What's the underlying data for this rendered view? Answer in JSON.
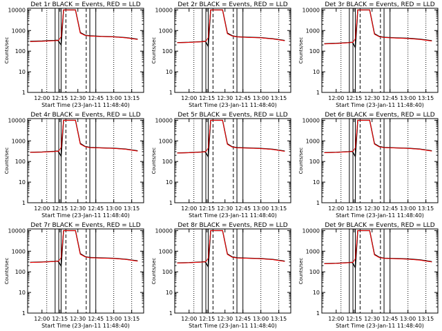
{
  "figure": {
    "xlabel": "Start Time (23-Jan-11 11:48:40)",
    "ylabel": "Counts/sec",
    "x_ticks": [
      "12:00",
      "12:15",
      "12:30",
      "12:45",
      "13:00",
      "13:15"
    ],
    "y_ticks": [
      "1",
      "10",
      "100",
      "1000",
      "10000"
    ],
    "colors": {
      "events": "#000000",
      "lld": "#ff0000",
      "axes": "#000000",
      "background": "#ffffff"
    }
  },
  "chart_data": [
    {
      "type": "line",
      "title": "Det 1r BLACK = Events, RED = LLD",
      "xlabel": "Start Time (23-Jan-11 11:48:40)",
      "ylabel": "Counts/sec",
      "y_scale": "log",
      "ylim": [
        1,
        12000
      ],
      "x": [
        "11:50",
        "12:00",
        "12:10",
        "12:13",
        "12:14",
        "12:16",
        "12:18",
        "12:26",
        "12:28",
        "12:32",
        "12:36",
        "12:40",
        "12:50",
        "13:00",
        "13:10",
        "13:20"
      ],
      "series": [
        {
          "name": "Events",
          "color": "#000000",
          "values": [
            300,
            310,
            330,
            340,
            300,
            200,
            10000,
            10000,
            10000,
            800,
            600,
            550,
            520,
            500,
            450,
            380
          ]
        },
        {
          "name": "LLD",
          "color": "#ff0000",
          "values": [
            290,
            300,
            320,
            330,
            340,
            500,
            10000,
            10000,
            10000,
            750,
            580,
            540,
            510,
            490,
            440,
            370
          ]
        }
      ]
    },
    {
      "type": "line",
      "title": "Det 2r BLACK = Events, RED = LLD",
      "xlabel": "Start Time (23-Jan-11 11:48:40)",
      "ylabel": "Counts/sec",
      "y_scale": "log",
      "ylim": [
        1,
        12000
      ],
      "x": [
        "11:50",
        "12:00",
        "12:10",
        "12:13",
        "12:14",
        "12:16",
        "12:18",
        "12:26",
        "12:28",
        "12:32",
        "12:36",
        "12:40",
        "12:50",
        "13:00",
        "13:10",
        "13:20"
      ],
      "series": [
        {
          "name": "Events",
          "color": "#000000",
          "values": [
            260,
            270,
            290,
            300,
            280,
            170,
            10000,
            10000,
            10000,
            750,
            560,
            500,
            470,
            450,
            400,
            330
          ]
        },
        {
          "name": "LLD",
          "color": "#ff0000",
          "values": [
            255,
            265,
            285,
            295,
            300,
            450,
            10000,
            10000,
            10000,
            700,
            540,
            490,
            460,
            440,
            390,
            320
          ]
        }
      ]
    },
    {
      "type": "line",
      "title": "Det 3r BLACK = Events, RED = LLD",
      "xlabel": "Start Time (23-Jan-11 11:48:40)",
      "ylabel": "Counts/sec",
      "y_scale": "log",
      "ylim": [
        1,
        12000
      ],
      "x": [
        "11:50",
        "12:00",
        "12:10",
        "12:13",
        "12:14",
        "12:16",
        "12:18",
        "12:26",
        "12:28",
        "12:32",
        "12:36",
        "12:40",
        "12:50",
        "13:00",
        "13:10",
        "13:20"
      ],
      "series": [
        {
          "name": "Events",
          "color": "#000000",
          "values": [
            230,
            240,
            260,
            270,
            250,
            150,
            10000,
            10000,
            10000,
            700,
            520,
            470,
            440,
            420,
            380,
            320
          ]
        },
        {
          "name": "LLD",
          "color": "#ff0000",
          "values": [
            225,
            235,
            255,
            265,
            270,
            400,
            10000,
            10000,
            10000,
            660,
            500,
            460,
            430,
            410,
            370,
            310
          ]
        }
      ]
    },
    {
      "type": "line",
      "title": "Det 4r BLACK = Events, RED = LLD",
      "xlabel": "Start Time (23-Jan-11 11:48:40)",
      "ylabel": "Counts/sec",
      "y_scale": "log",
      "ylim": [
        1,
        12000
      ],
      "x": [
        "11:50",
        "12:00",
        "12:10",
        "12:13",
        "12:14",
        "12:16",
        "12:18",
        "12:26",
        "12:28",
        "12:32",
        "12:36",
        "12:40",
        "12:50",
        "13:00",
        "13:10",
        "13:20"
      ],
      "series": [
        {
          "name": "Events",
          "color": "#000000",
          "values": [
            280,
            290,
            310,
            320,
            290,
            180,
            10000,
            10000,
            10000,
            750,
            540,
            480,
            460,
            440,
            400,
            330
          ]
        },
        {
          "name": "LLD",
          "color": "#ff0000",
          "values": [
            275,
            285,
            305,
            315,
            320,
            480,
            10000,
            10000,
            10000,
            700,
            520,
            470,
            450,
            430,
            390,
            320
          ]
        }
      ]
    },
    {
      "type": "line",
      "title": "Det 5r BLACK = Events, RED = LLD",
      "xlabel": "Start Time (23-Jan-11 11:48:40)",
      "ylabel": "Counts/sec",
      "y_scale": "log",
      "ylim": [
        1,
        12000
      ],
      "x": [
        "11:50",
        "12:00",
        "12:10",
        "12:13",
        "12:14",
        "12:16",
        "12:18",
        "12:26",
        "12:28",
        "12:32",
        "12:36",
        "12:40",
        "12:50",
        "13:00",
        "13:10",
        "13:20"
      ],
      "series": [
        {
          "name": "Events",
          "color": "#000000",
          "values": [
            260,
            270,
            290,
            300,
            270,
            170,
            10000,
            10000,
            10000,
            720,
            520,
            470,
            450,
            430,
            390,
            320
          ]
        },
        {
          "name": "LLD",
          "color": "#ff0000",
          "values": [
            255,
            265,
            285,
            295,
            300,
            450,
            10000,
            10000,
            10000,
            680,
            500,
            460,
            440,
            420,
            380,
            310
          ]
        }
      ]
    },
    {
      "type": "line",
      "title": "Det 6r BLACK = Events, RED = LLD",
      "xlabel": "Start Time (23-Jan-11 11:48:40)",
      "ylabel": "Counts/sec",
      "y_scale": "log",
      "ylim": [
        1,
        12000
      ],
      "x": [
        "11:50",
        "12:00",
        "12:10",
        "12:13",
        "12:14",
        "12:16",
        "12:18",
        "12:26",
        "12:28",
        "12:32",
        "12:36",
        "12:40",
        "12:50",
        "13:00",
        "13:10",
        "13:20"
      ],
      "series": [
        {
          "name": "Events",
          "color": "#000000",
          "values": [
            270,
            280,
            300,
            310,
            280,
            175,
            10000,
            10000,
            10000,
            730,
            530,
            480,
            460,
            440,
            400,
            330
          ]
        },
        {
          "name": "LLD",
          "color": "#ff0000",
          "values": [
            265,
            275,
            295,
            305,
            310,
            460,
            10000,
            10000,
            10000,
            690,
            510,
            470,
            450,
            430,
            390,
            320
          ]
        }
      ]
    },
    {
      "type": "line",
      "title": "Det 7r BLACK = Events, RED = LLD",
      "xlabel": "Start Time (23-Jan-11 11:48:40)",
      "ylabel": "Counts/sec",
      "y_scale": "log",
      "ylim": [
        1,
        12000
      ],
      "x": [
        "11:50",
        "12:00",
        "12:10",
        "12:13",
        "12:14",
        "12:16",
        "12:18",
        "12:26",
        "12:28",
        "12:32",
        "12:36",
        "12:40",
        "12:50",
        "13:00",
        "13:10",
        "13:20"
      ],
      "series": [
        {
          "name": "Events",
          "color": "#000000",
          "values": [
            290,
            300,
            320,
            330,
            300,
            190,
            10000,
            10000,
            10000,
            760,
            550,
            490,
            470,
            450,
            410,
            340
          ]
        },
        {
          "name": "LLD",
          "color": "#ff0000",
          "values": [
            285,
            295,
            315,
            325,
            330,
            490,
            10000,
            10000,
            10000,
            710,
            530,
            480,
            460,
            440,
            400,
            330
          ]
        }
      ]
    },
    {
      "type": "line",
      "title": "Det 8r BLACK = Events, RED = LLD",
      "xlabel": "Start Time (23-Jan-11 11:48:40)",
      "ylabel": "Counts/sec",
      "y_scale": "log",
      "ylim": [
        1,
        12000
      ],
      "x": [
        "11:50",
        "12:00",
        "12:10",
        "12:13",
        "12:14",
        "12:16",
        "12:18",
        "12:26",
        "12:28",
        "12:32",
        "12:36",
        "12:40",
        "12:50",
        "13:00",
        "13:10",
        "13:20"
      ],
      "series": [
        {
          "name": "Events",
          "color": "#000000",
          "values": [
            270,
            280,
            300,
            310,
            280,
            175,
            10000,
            10000,
            10000,
            740,
            530,
            480,
            460,
            440,
            400,
            330
          ]
        },
        {
          "name": "LLD",
          "color": "#ff0000",
          "values": [
            265,
            275,
            295,
            305,
            310,
            460,
            10000,
            10000,
            10000,
            700,
            510,
            470,
            450,
            430,
            390,
            320
          ]
        }
      ]
    },
    {
      "type": "line",
      "title": "Det 9r BLACK = Events, RED = LLD",
      "xlabel": "Start Time (23-Jan-11 11:48:40)",
      "ylabel": "Counts/sec",
      "y_scale": "log",
      "ylim": [
        1,
        12000
      ],
      "x": [
        "11:50",
        "12:00",
        "12:10",
        "12:13",
        "12:14",
        "12:16",
        "12:18",
        "12:26",
        "12:28",
        "12:32",
        "12:36",
        "12:40",
        "12:50",
        "13:00",
        "13:10",
        "13:20"
      ],
      "series": [
        {
          "name": "Events",
          "color": "#000000",
          "values": [
            250,
            260,
            280,
            290,
            260,
            160,
            10000,
            10000,
            10000,
            700,
            510,
            460,
            440,
            420,
            380,
            310
          ]
        },
        {
          "name": "LLD",
          "color": "#ff0000",
          "values": [
            245,
            255,
            275,
            285,
            290,
            430,
            10000,
            10000,
            10000,
            660,
            490,
            450,
            430,
            410,
            370,
            300
          ]
        }
      ]
    }
  ],
  "markers": {
    "solid_lines": [
      "12:11",
      "12:14",
      "12:16",
      "12:40",
      "12:45"
    ],
    "dashed_lines": [
      "12:20",
      "12:37"
    ],
    "dotted_lines": [
      "12:04",
      "13:00",
      "13:15"
    ]
  }
}
